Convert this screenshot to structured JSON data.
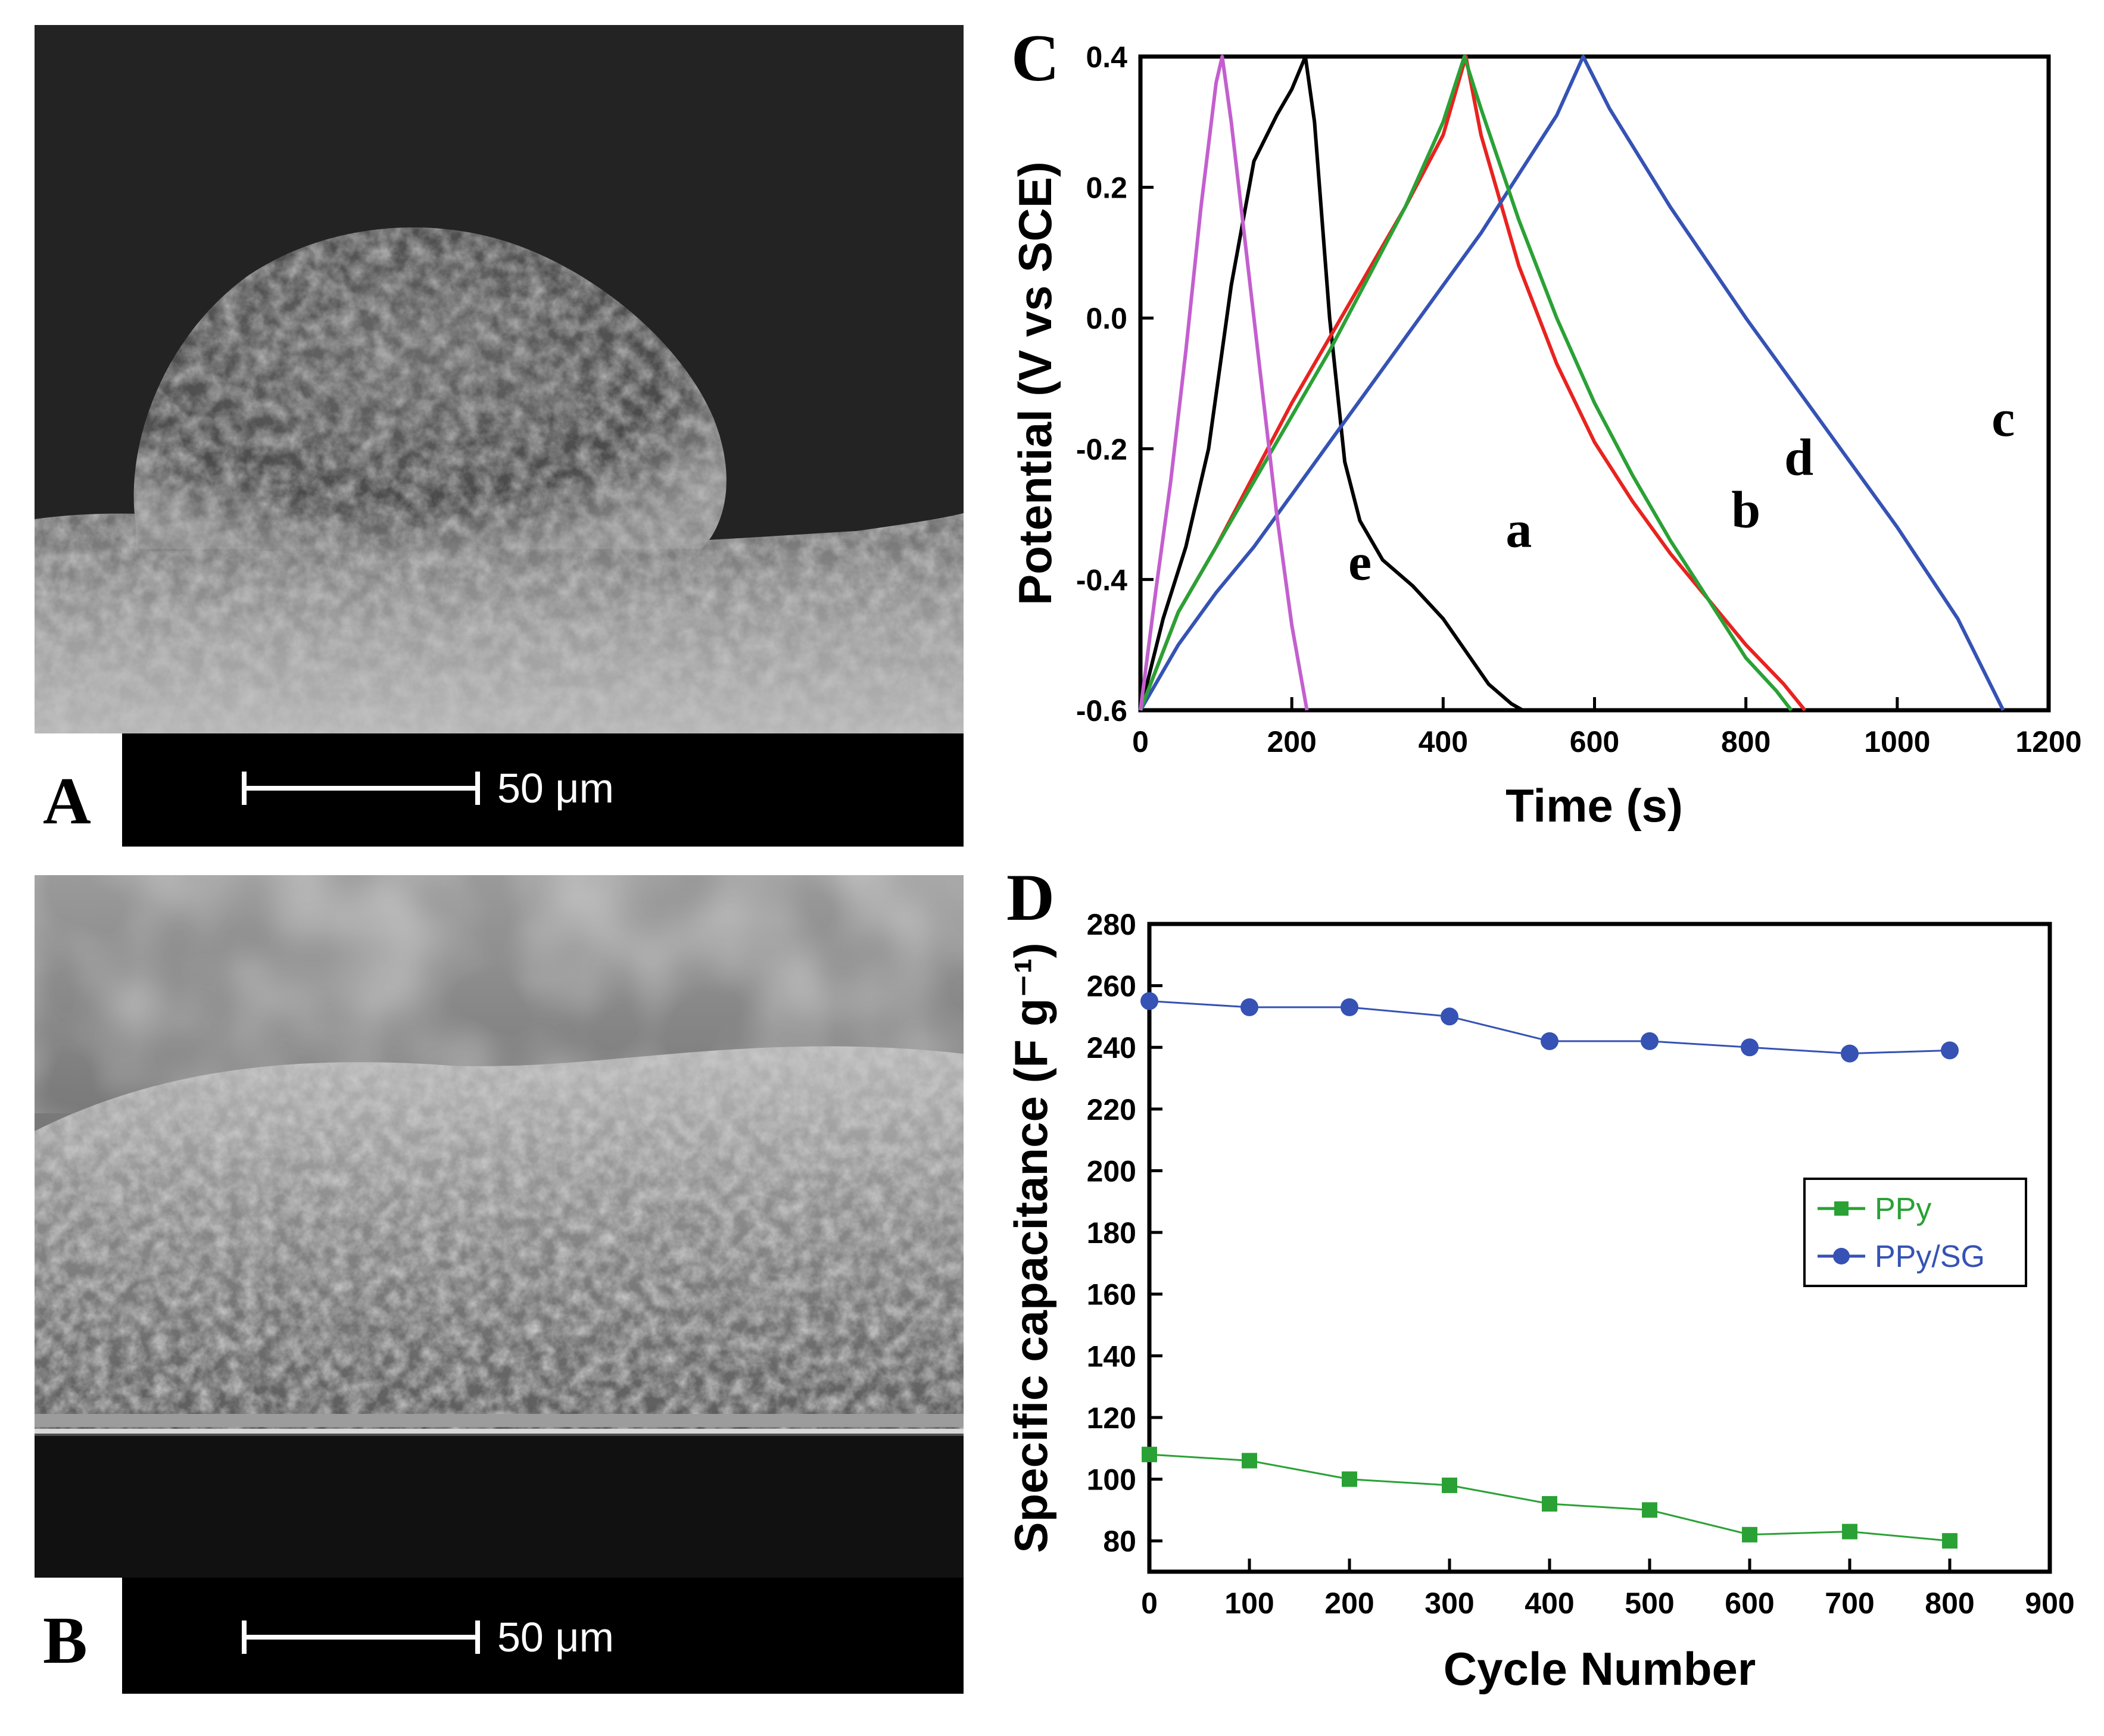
{
  "panels": {
    "A": {
      "letter": "A",
      "scale_bar": "50 μm"
    },
    "B": {
      "letter": "B",
      "scale_bar": "50 μm"
    },
    "C": {
      "letter": "C"
    },
    "D": {
      "letter": "D"
    }
  },
  "chart_data": [
    {
      "id": "C",
      "type": "line",
      "xlabel": "Time (s)",
      "ylabel": "Potential (V vs SCE)",
      "xlim": [
        0,
        1200
      ],
      "ylim": [
        -0.6,
        0.4
      ],
      "xticks": [
        "0",
        "200",
        "400",
        "600",
        "800",
        "1000",
        "1200"
      ],
      "yticks": [
        "-0.6",
        "-0.4",
        "-0.2",
        "0.0",
        "0.2",
        "0.4"
      ],
      "grid": false,
      "series": [
        {
          "name": "a",
          "color": "#000000",
          "x": [
            0,
            30,
            60,
            90,
            120,
            150,
            180,
            200,
            218,
            230,
            250,
            270,
            290,
            320,
            360,
            400,
            430,
            460,
            490,
            505
          ],
          "y": [
            -0.6,
            -0.46,
            -0.35,
            -0.2,
            0.05,
            0.24,
            0.31,
            0.35,
            0.4,
            0.3,
            0.0,
            -0.22,
            -0.31,
            -0.37,
            -0.41,
            -0.46,
            -0.51,
            -0.56,
            -0.59,
            -0.6
          ]
        },
        {
          "name": "b",
          "color": "#e8231f",
          "x": [
            0,
            50,
            100,
            150,
            200,
            250,
            300,
            350,
            400,
            430,
            450,
            500,
            550,
            600,
            650,
            700,
            750,
            800,
            850,
            878
          ],
          "y": [
            -0.6,
            -0.45,
            -0.35,
            -0.24,
            -0.13,
            -0.03,
            0.07,
            0.17,
            0.28,
            0.4,
            0.28,
            0.08,
            -0.07,
            -0.19,
            -0.28,
            -0.36,
            -0.43,
            -0.5,
            -0.56,
            -0.6
          ]
        },
        {
          "name": "c",
          "color": "#3552b4",
          "x": [
            0,
            50,
            100,
            150,
            200,
            250,
            300,
            350,
            400,
            450,
            500,
            550,
            585,
            620,
            700,
            800,
            900,
            1000,
            1080,
            1140
          ],
          "y": [
            -0.6,
            -0.5,
            -0.42,
            -0.35,
            -0.27,
            -0.19,
            -0.11,
            -0.03,
            0.05,
            0.13,
            0.22,
            0.31,
            0.4,
            0.32,
            0.17,
            0.0,
            -0.16,
            -0.32,
            -0.46,
            -0.6
          ]
        },
        {
          "name": "d",
          "color": "#2aa135",
          "x": [
            0,
            50,
            100,
            150,
            200,
            250,
            300,
            350,
            400,
            428,
            450,
            500,
            550,
            600,
            650,
            700,
            750,
            800,
            840,
            860
          ],
          "y": [
            -0.6,
            -0.45,
            -0.35,
            -0.25,
            -0.15,
            -0.05,
            0.06,
            0.17,
            0.3,
            0.4,
            0.32,
            0.15,
            0.0,
            -0.13,
            -0.24,
            -0.34,
            -0.43,
            -0.52,
            -0.57,
            -0.6
          ]
        },
        {
          "name": "e",
          "color": "#c35fcf",
          "x": [
            0,
            20,
            40,
            60,
            80,
            100,
            108,
            120,
            140,
            160,
            180,
            200,
            220
          ],
          "y": [
            -0.6,
            -0.42,
            -0.25,
            -0.05,
            0.17,
            0.36,
            0.4,
            0.3,
            0.1,
            -0.1,
            -0.3,
            -0.47,
            -0.6
          ]
        }
      ]
    },
    {
      "id": "D",
      "type": "line",
      "xlabel": "Cycle Number",
      "ylabel": "Specific capacitance (F g⁻¹)",
      "xlim": [
        0,
        900
      ],
      "ylim": [
        70,
        280
      ],
      "xticks": [
        "0",
        "100",
        "200",
        "300",
        "400",
        "500",
        "600",
        "700",
        "800",
        "900"
      ],
      "yticks": [
        "80",
        "100",
        "120",
        "140",
        "160",
        "180",
        "200",
        "220",
        "240",
        "260",
        "280"
      ],
      "legend": "right",
      "grid": false,
      "series": [
        {
          "name": "PPy",
          "color": "#2aa135",
          "marker": "square",
          "x": [
            0,
            100,
            200,
            300,
            400,
            500,
            600,
            700,
            800
          ],
          "y": [
            108,
            106,
            100,
            98,
            92,
            90,
            82,
            83,
            80
          ]
        },
        {
          "name": "PPy/SG",
          "color": "#3552b4",
          "marker": "circle",
          "x": [
            0,
            100,
            200,
            300,
            400,
            500,
            600,
            700,
            800
          ],
          "y": [
            255,
            253,
            253,
            250,
            242,
            242,
            240,
            238,
            239
          ]
        }
      ]
    }
  ]
}
